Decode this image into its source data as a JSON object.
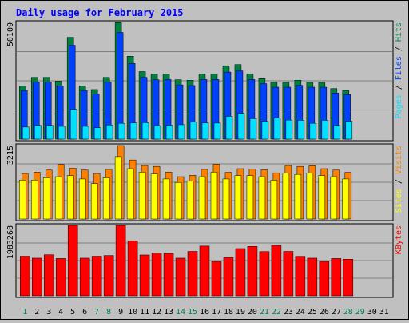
{
  "chart_data": {
    "type": "bar",
    "title": "Daily usage for February 2015",
    "days": [
      "1",
      "2",
      "3",
      "4",
      "5",
      "6",
      "7",
      "8",
      "9",
      "10",
      "11",
      "12",
      "13",
      "14",
      "15",
      "16",
      "17",
      "18",
      "19",
      "20",
      "21",
      "22",
      "23",
      "24",
      "25",
      "26",
      "27",
      "28",
      "29",
      "30",
      "31"
    ],
    "weekend_days": [
      "1",
      "7",
      "8",
      "14",
      "15",
      "21",
      "22",
      "28",
      "29"
    ],
    "panels": {
      "pages_files_hits": {
        "max_label": "50109",
        "ylim": [
          0,
          50109
        ],
        "series": [
          {
            "name": "Hits",
            "color": "#008040",
            "values": [
              22900,
              26500,
              26500,
              24900,
              43700,
              22900,
              21300,
              26500,
              50000,
              35600,
              29000,
              28000,
              28000,
              25500,
              25300,
              28000,
              28000,
              31500,
              32000,
              28000,
              26000,
              24400,
              24400,
              25300,
              24400,
              24400,
              21700,
              20900
            ]
          },
          {
            "name": "Files",
            "color": "#0040ff",
            "values": [
              20900,
              24500,
              24500,
              22900,
              40300,
              20900,
              19400,
              24500,
              45800,
              32500,
              26500,
              25500,
              25600,
              23300,
              23000,
              25600,
              25600,
              28800,
              29300,
              25600,
              23800,
              22300,
              22300,
              23100,
              22300,
              22300,
              19800,
              19100
            ]
          },
          {
            "name": "Pages",
            "color": "#00e0ff",
            "values": [
              5200,
              5900,
              5900,
              5500,
              12800,
              5500,
              4900,
              6100,
              6800,
              7000,
              7100,
              5800,
              5900,
              6200,
              7400,
              7000,
              6900,
              9800,
              11100,
              8800,
              7700,
              9100,
              8200,
              8100,
              6800,
              8100,
              5900,
              7700
            ]
          }
        ],
        "legend_labels": [
          "Pages",
          "Files",
          "Hits"
        ]
      },
      "visits_sites": {
        "max_label": "3215",
        "ylim": [
          0,
          3215
        ],
        "series": [
          {
            "name": "Visits",
            "color": "#ff8000",
            "values": [
              1990,
              2050,
              2140,
              2390,
              2220,
              2140,
              1990,
              2170,
              3215,
              2580,
              2340,
              2300,
              2050,
              1850,
              1910,
              2170,
              2390,
              2040,
              2200,
              2180,
              2150,
              2020,
              2340,
              2300,
              2330,
              2200,
              2140,
              2040
            ]
          },
          {
            "name": "Sites",
            "color": "#ffff00",
            "values": [
              1700,
              1700,
              1800,
              1850,
              1900,
              1750,
              1550,
              1800,
              2730,
              2200,
              2050,
              1970,
              1750,
              1600,
              1650,
              1850,
              2050,
              1750,
              1900,
              1900,
              1850,
              1700,
              2000,
              1950,
              2000,
              1900,
              1850,
              1750
            ]
          }
        ],
        "legend_labels": [
          "Sites",
          "Visits"
        ]
      },
      "kbytes": {
        "max_label": "1983268",
        "ylim": [
          0,
          1983268
        ],
        "series": [
          {
            "name": "KBytes",
            "color": "#ff0000",
            "values": [
              1115000,
              1060000,
              1155000,
              1050000,
              1983268,
              1060000,
              1115000,
              1135000,
              1983268,
              1550000,
              1150000,
              1200000,
              1195000,
              1060000,
              1250000,
              1400000,
              970000,
              1080000,
              1330000,
              1390000,
              1245000,
              1420000,
              1250000,
              1110000,
              1060000,
              970000,
              1050000,
              1030000
            ]
          }
        ],
        "legend_labels": [
          "KBytes"
        ]
      }
    }
  }
}
